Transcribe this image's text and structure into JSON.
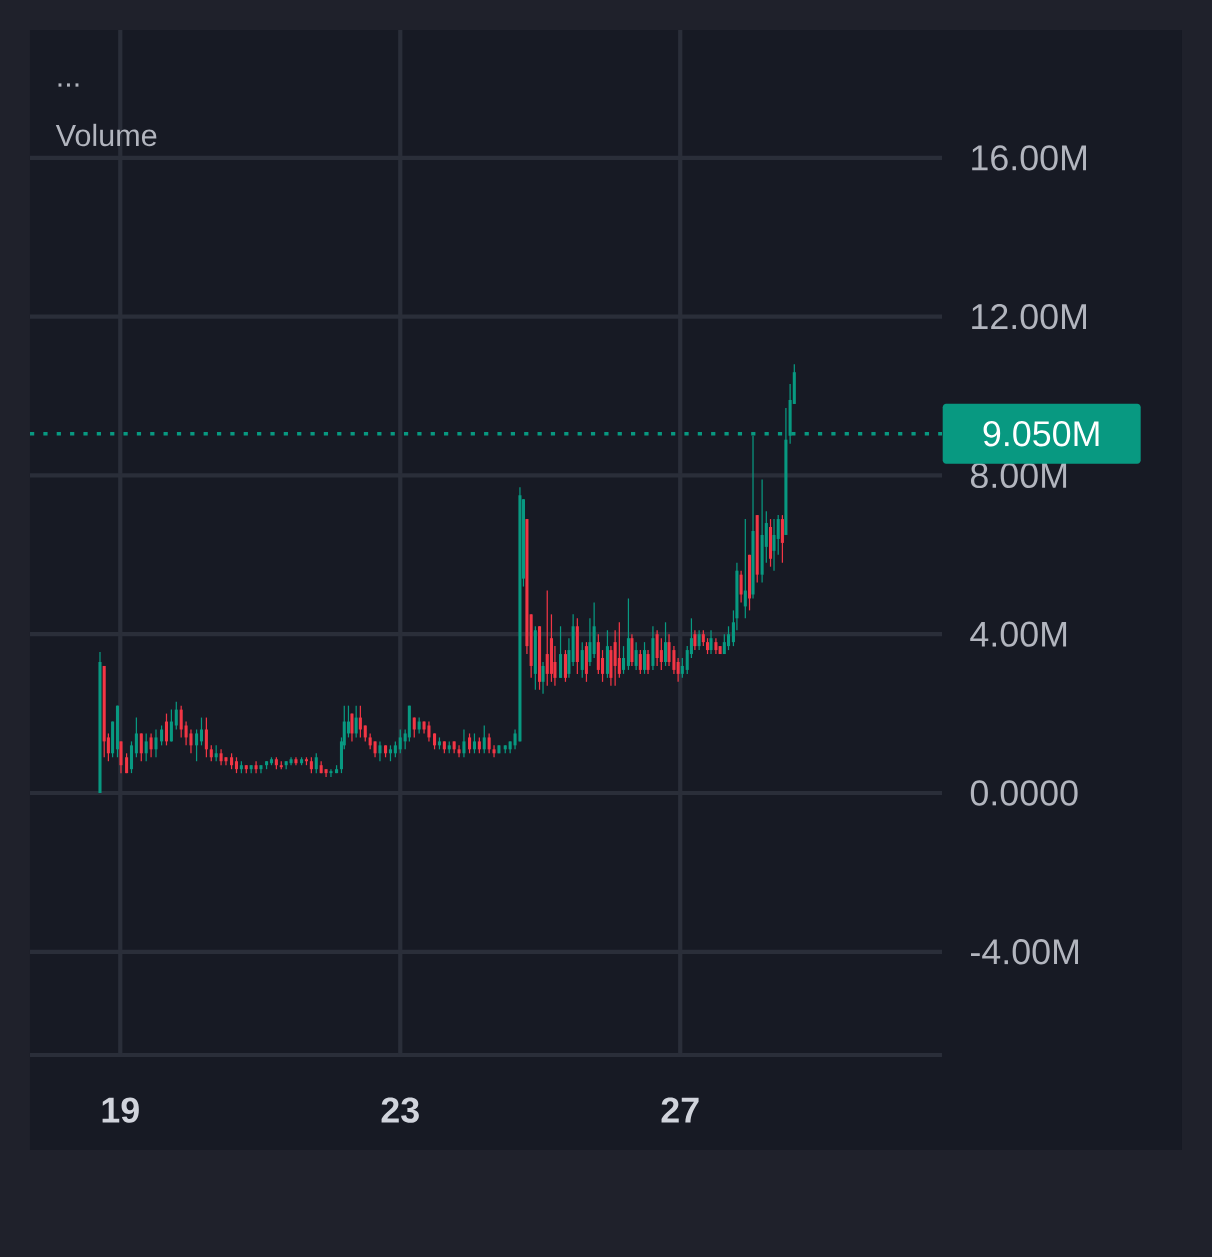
{
  "chart_data": {
    "type": "candlestick",
    "x": [
      18.71,
      18.77,
      18.83,
      18.89,
      18.96,
      19.01,
      19.09,
      19.16,
      19.23,
      19.3,
      19.37,
      19.44,
      19.51,
      19.59,
      19.66,
      19.73,
      19.8,
      19.87,
      19.94,
      20.01,
      20.09,
      20.16,
      20.23,
      20.3,
      20.37,
      20.44,
      20.51,
      20.59,
      20.66,
      20.73,
      20.8,
      20.87,
      20.94,
      21.01,
      21.09,
      21.16,
      21.23,
      21.3,
      21.37,
      21.44,
      21.51,
      21.59,
      21.66,
      21.73,
      21.8,
      21.87,
      21.94,
      22.01,
      22.09,
      22.16,
      22.2,
      22.26,
      22.31,
      22.37,
      22.43,
      22.5,
      22.57,
      22.64,
      22.71,
      22.79,
      22.86,
      22.93,
      23.0,
      23.07,
      23.13,
      23.2,
      23.27,
      23.34,
      23.41,
      23.49,
      23.56,
      23.63,
      23.7,
      23.77,
      23.84,
      23.91,
      23.99,
      24.06,
      24.13,
      24.2,
      24.27,
      24.34,
      24.41,
      24.5,
      24.57,
      24.64,
      24.71,
      24.76,
      24.81,
      24.87,
      24.93,
      24.99,
      25.04,
      25.1,
      25.16,
      25.21,
      25.29,
      25.36,
      25.41,
      25.47,
      25.53,
      25.6,
      25.66,
      25.71,
      25.77,
      25.83,
      25.89,
      25.96,
      26.01,
      26.07,
      26.13,
      26.19,
      26.26,
      26.31,
      26.37,
      26.43,
      26.49,
      26.54,
      26.61,
      26.67,
      26.73,
      26.79,
      26.84,
      26.91,
      26.97,
      27.03,
      27.1,
      27.16,
      27.21,
      27.27,
      27.33,
      27.39,
      27.44,
      27.51,
      27.57,
      27.63,
      27.69,
      27.76,
      27.81,
      27.87,
      27.93,
      27.99,
      28.04,
      28.1,
      28.17,
      28.23,
      28.29,
      28.34,
      28.4,
      28.46,
      28.51,
      28.57,
      28.63
    ],
    "ohlc": [
      [
        0.0,
        3.55,
        0.0,
        3.3
      ],
      [
        3.2,
        3.2,
        0.9,
        1.3
      ],
      [
        1.4,
        1.5,
        0.8,
        1.0
      ],
      [
        1.0,
        1.8,
        0.9,
        1.8
      ],
      [
        1.1,
        2.2,
        0.9,
        2.2
      ],
      [
        1.3,
        1.3,
        0.5,
        0.7
      ],
      [
        0.9,
        1.0,
        0.5,
        0.5
      ],
      [
        0.6,
        1.3,
        0.5,
        1.2
      ],
      [
        1.0,
        1.9,
        0.9,
        1.5
      ],
      [
        1.5,
        1.5,
        0.8,
        1.0
      ],
      [
        1.0,
        1.5,
        0.8,
        1.3
      ],
      [
        1.4,
        1.5,
        0.9,
        1.1
      ],
      [
        1.1,
        1.6,
        0.9,
        1.4
      ],
      [
        1.3,
        1.7,
        1.2,
        1.6
      ],
      [
        1.8,
        2.0,
        1.2,
        1.3
      ],
      [
        1.3,
        2.1,
        1.3,
        1.8
      ],
      [
        1.7,
        2.3,
        1.6,
        2.1
      ],
      [
        2.1,
        2.2,
        1.4,
        1.6
      ],
      [
        1.7,
        1.8,
        1.2,
        1.4
      ],
      [
        1.5,
        1.6,
        1.0,
        1.2
      ],
      [
        1.2,
        1.6,
        0.8,
        1.5
      ],
      [
        1.3,
        1.9,
        1.2,
        1.6
      ],
      [
        1.6,
        1.9,
        0.9,
        1.1
      ],
      [
        1.1,
        1.2,
        0.8,
        0.9
      ],
      [
        0.9,
        1.2,
        0.8,
        1.0
      ],
      [
        1.0,
        1.1,
        0.7,
        0.8
      ],
      [
        0.9,
        0.9,
        0.7,
        0.8
      ],
      [
        0.9,
        1.0,
        0.6,
        0.7
      ],
      [
        0.8,
        0.9,
        0.5,
        0.6
      ],
      [
        0.6,
        0.8,
        0.5,
        0.7
      ],
      [
        0.7,
        0.7,
        0.5,
        0.6
      ],
      [
        0.6,
        0.7,
        0.5,
        0.7
      ],
      [
        0.7,
        0.8,
        0.5,
        0.6
      ],
      [
        0.6,
        0.7,
        0.5,
        0.7
      ],
      [
        0.7,
        0.8,
        0.6,
        0.8
      ],
      [
        0.75,
        0.9,
        0.7,
        0.85
      ],
      [
        0.85,
        0.9,
        0.6,
        0.7
      ],
      [
        0.7,
        0.8,
        0.6,
        0.65
      ],
      [
        0.7,
        0.8,
        0.6,
        0.8
      ],
      [
        0.75,
        0.9,
        0.7,
        0.85
      ],
      [
        0.85,
        0.9,
        0.7,
        0.75
      ],
      [
        0.75,
        0.9,
        0.7,
        0.85
      ],
      [
        0.85,
        0.9,
        0.7,
        0.8
      ],
      [
        0.8,
        0.9,
        0.5,
        0.6
      ],
      [
        0.6,
        1.0,
        0.5,
        0.9
      ],
      [
        0.7,
        0.8,
        0.5,
        0.5
      ],
      [
        0.6,
        0.6,
        0.4,
        0.5
      ],
      [
        0.5,
        0.6,
        0.4,
        0.55
      ],
      [
        0.5,
        0.7,
        0.5,
        0.6
      ],
      [
        0.6,
        1.4,
        0.5,
        1.3
      ],
      [
        1.2,
        2.2,
        1.1,
        1.8
      ],
      [
        1.5,
        2.2,
        1.4,
        1.8
      ],
      [
        2.0,
        2.0,
        1.3,
        1.5
      ],
      [
        1.5,
        2.2,
        1.4,
        1.9
      ],
      [
        1.9,
        2.2,
        1.4,
        1.6
      ],
      [
        1.7,
        1.7,
        1.3,
        1.4
      ],
      [
        1.4,
        1.5,
        1.1,
        1.2
      ],
      [
        1.3,
        1.3,
        0.9,
        1.0
      ],
      [
        1.0,
        1.3,
        0.8,
        1.2
      ],
      [
        1.2,
        1.2,
        0.9,
        1.0
      ],
      [
        1.0,
        1.2,
        0.8,
        1.1
      ],
      [
        1.0,
        1.3,
        0.9,
        1.2
      ],
      [
        1.1,
        1.6,
        1.0,
        1.4
      ],
      [
        1.3,
        1.6,
        1.1,
        1.5
      ],
      [
        1.4,
        2.2,
        1.3,
        2.2
      ],
      [
        1.9,
        1.9,
        1.4,
        1.6
      ],
      [
        1.6,
        1.9,
        1.5,
        1.8
      ],
      [
        1.8,
        1.8,
        1.5,
        1.6
      ],
      [
        1.7,
        1.8,
        1.3,
        1.4
      ],
      [
        1.5,
        1.5,
        1.1,
        1.2
      ],
      [
        1.2,
        1.4,
        1.1,
        1.3
      ],
      [
        1.3,
        1.3,
        1.0,
        1.1
      ],
      [
        1.1,
        1.3,
        1.0,
        1.2
      ],
      [
        1.3,
        1.3,
        1.0,
        1.1
      ],
      [
        1.1,
        1.2,
        0.9,
        1.0
      ],
      [
        1.0,
        1.6,
        0.9,
        1.3
      ],
      [
        1.4,
        1.5,
        1.0,
        1.1
      ],
      [
        1.1,
        1.5,
        1.0,
        1.3
      ],
      [
        1.3,
        1.4,
        1.0,
        1.1
      ],
      [
        1.1,
        1.7,
        1.0,
        1.4
      ],
      [
        1.4,
        1.5,
        1.0,
        1.1
      ],
      [
        1.1,
        1.2,
        0.9,
        1.0
      ],
      [
        1.0,
        1.2,
        1.0,
        1.2
      ],
      [
        1.1,
        1.2,
        1.0,
        1.2
      ],
      [
        1.1,
        1.3,
        1.0,
        1.3
      ],
      [
        1.2,
        1.6,
        1.1,
        1.5
      ],
      [
        1.3,
        7.7,
        1.3,
        7.5
      ],
      [
        5.4,
        7.4,
        5.2,
        7.4
      ],
      [
        6.9,
        6.9,
        3.5,
        3.7
      ],
      [
        4.5,
        4.5,
        2.9,
        3.2
      ],
      [
        3.0,
        4.2,
        2.6,
        4.1
      ],
      [
        4.2,
        4.2,
        2.6,
        2.8
      ],
      [
        2.8,
        3.3,
        2.5,
        3.2
      ],
      [
        3.5,
        5.1,
        2.7,
        3.0
      ],
      [
        3.9,
        4.5,
        2.8,
        3.0
      ],
      [
        3.3,
        3.7,
        2.7,
        2.9
      ],
      [
        2.9,
        4.2,
        2.9,
        3.5
      ],
      [
        3.5,
        3.6,
        2.8,
        2.9
      ],
      [
        3.0,
        3.9,
        2.9,
        3.6
      ],
      [
        3.3,
        4.5,
        3.2,
        4.2
      ],
      [
        4.2,
        4.4,
        3.0,
        3.3
      ],
      [
        3.1,
        3.8,
        2.9,
        3.6
      ],
      [
        3.7,
        3.8,
        2.8,
        3.0
      ],
      [
        3.3,
        4.4,
        3.2,
        3.8
      ],
      [
        3.5,
        4.8,
        3.4,
        4.2
      ],
      [
        3.8,
        4.0,
        3.0,
        3.1
      ],
      [
        3.4,
        3.6,
        2.8,
        3.0
      ],
      [
        3.0,
        4.1,
        2.9,
        3.7
      ],
      [
        3.6,
        3.7,
        2.7,
        2.9
      ],
      [
        3.8,
        4.1,
        2.7,
        3.2
      ],
      [
        3.4,
        4.3,
        2.9,
        3.0
      ],
      [
        3.1,
        3.7,
        3.0,
        3.4
      ],
      [
        3.2,
        4.9,
        3.1,
        3.9
      ],
      [
        3.9,
        4.0,
        3.2,
        3.3
      ],
      [
        3.2,
        3.8,
        3.1,
        3.6
      ],
      [
        3.5,
        3.6,
        3.0,
        3.1
      ],
      [
        3.1,
        3.8,
        3.0,
        3.6
      ],
      [
        3.5,
        3.6,
        3.0,
        3.1
      ],
      [
        3.2,
        4.2,
        3.1,
        3.9
      ],
      [
        4.0,
        4.1,
        3.2,
        3.4
      ],
      [
        3.6,
        3.9,
        3.1,
        3.3
      ],
      [
        3.3,
        4.3,
        3.2,
        3.8
      ],
      [
        3.8,
        4.0,
        3.2,
        3.3
      ],
      [
        3.6,
        3.7,
        3.0,
        3.1
      ],
      [
        3.3,
        3.4,
        2.8,
        3.0
      ],
      [
        3.0,
        3.4,
        2.9,
        3.2
      ],
      [
        3.1,
        3.7,
        3.0,
        3.6
      ],
      [
        3.5,
        4.4,
        3.4,
        3.9
      ],
      [
        4.0,
        4.1,
        3.6,
        3.7
      ],
      [
        3.7,
        4.1,
        3.6,
        4.0
      ],
      [
        4.0,
        4.1,
        3.7,
        3.8
      ],
      [
        3.8,
        3.9,
        3.5,
        3.6
      ],
      [
        3.6,
        4.1,
        3.5,
        3.9
      ],
      [
        3.8,
        3.9,
        3.5,
        3.6
      ],
      [
        3.7,
        3.7,
        3.5,
        3.5
      ],
      [
        3.5,
        4.0,
        3.5,
        3.8
      ],
      [
        3.7,
        4.2,
        3.6,
        4.0
      ],
      [
        3.8,
        4.6,
        3.7,
        4.3
      ],
      [
        4.4,
        5.8,
        4.1,
        5.6
      ],
      [
        5.5,
        5.6,
        4.8,
        5.0
      ],
      [
        4.7,
        6.9,
        4.4,
        5.1
      ],
      [
        6.0,
        6.0,
        4.6,
        4.9
      ],
      [
        5.0,
        9.0,
        4.9,
        6.6
      ],
      [
        7.0,
        7.0,
        5.3,
        5.5
      ],
      [
        5.5,
        7.9,
        5.3,
        6.5
      ],
      [
        6.2,
        7.1,
        5.8,
        6.8
      ],
      [
        6.7,
        6.9,
        5.7,
        5.9
      ],
      [
        6.1,
        6.9,
        5.6,
        6.5
      ],
      [
        6.4,
        7.0,
        6.0,
        6.9
      ],
      [
        6.9,
        7.0,
        5.8,
        6.3
      ],
      [
        6.5,
        9.7,
        6.5,
        8.9
      ],
      [
        9.0,
        10.3,
        8.8,
        9.9
      ],
      [
        9.8,
        10.8,
        9.8,
        10.6
      ]
    ],
    "xlim": [
      17.71,
      30.74
    ],
    "ylim": [
      -6.6,
      19.22
    ],
    "xticks": [
      19,
      23,
      27
    ],
    "yticks": [
      {
        "value": -4,
        "label": "-4.00M"
      },
      {
        "value": 0,
        "label": "0.0000"
      },
      {
        "value": 4,
        "label": "4.00M"
      },
      {
        "value": 8,
        "label": "8.00M"
      },
      {
        "value": 12,
        "label": "12.00M"
      },
      {
        "value": 16,
        "label": "16.00M"
      }
    ],
    "grid": true,
    "ref_lines": [
      {
        "axis": "y",
        "value": 9.05,
        "label": "9.050M",
        "color": "#089981",
        "line_style": "dotted"
      }
    ],
    "annotations": [
      "...",
      "Volume"
    ]
  }
}
